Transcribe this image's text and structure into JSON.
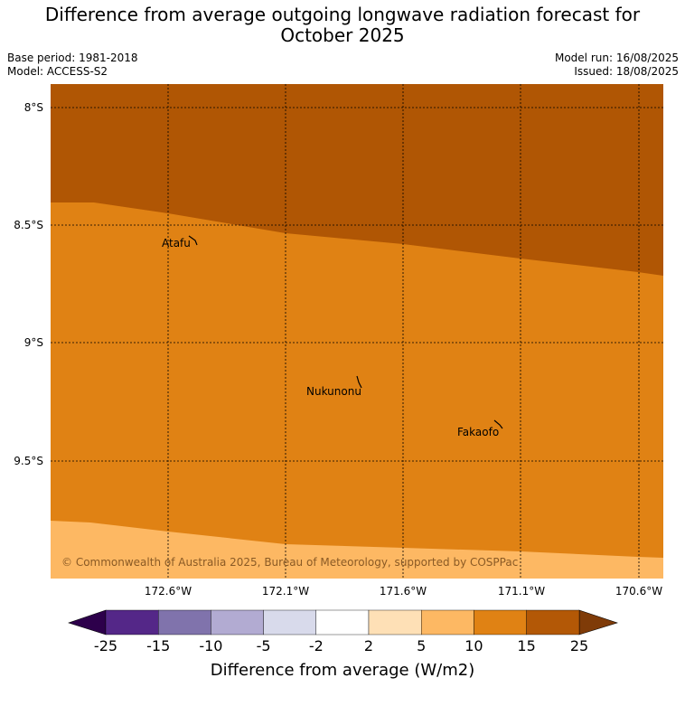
{
  "header": {
    "title_line1": "Difference from average outgoing longwave radiation forecast for",
    "title_line2": "October 2025",
    "base_period": "Base period: 1981-2018",
    "model": "Model: ACCESS-S2",
    "model_run": "Model run: 16/08/2025",
    "issued": "Issued: 18/08/2025"
  },
  "map": {
    "lat_labels": [
      "8°S",
      "8.5°S",
      "9°S",
      "9.5°S"
    ],
    "lon_labels": [
      "172.6°W",
      "172.1°W",
      "171.6°W",
      "171.1°W",
      "170.6°W"
    ],
    "places": [
      "Atafu",
      "Nukunonu",
      "Fakaofo"
    ],
    "copyright": "© Commonwealth of Australia 2025, Bureau of Meteorology, supported by COSPPac",
    "bands": [
      {
        "range": "15 to 25",
        "color": "#b05604"
      },
      {
        "range": "10 to 15",
        "color": "#e08214"
      },
      {
        "range": "5 to 10",
        "color": "#fdb863"
      }
    ]
  },
  "colorbar": {
    "title": "Difference from average (W/m2)",
    "ticks": [
      "-25",
      "-15",
      "-10",
      "-5",
      "-2",
      "2",
      "5",
      "10",
      "15",
      "25"
    ],
    "colors": [
      "#542788",
      "#8073ac",
      "#b2abd2",
      "#d8daeb",
      "#ffffff",
      "#fee0b6",
      "#fdb863",
      "#e08214",
      "#b35806"
    ],
    "under_color": "#2d004b",
    "over_color": "#7f3b08"
  }
}
